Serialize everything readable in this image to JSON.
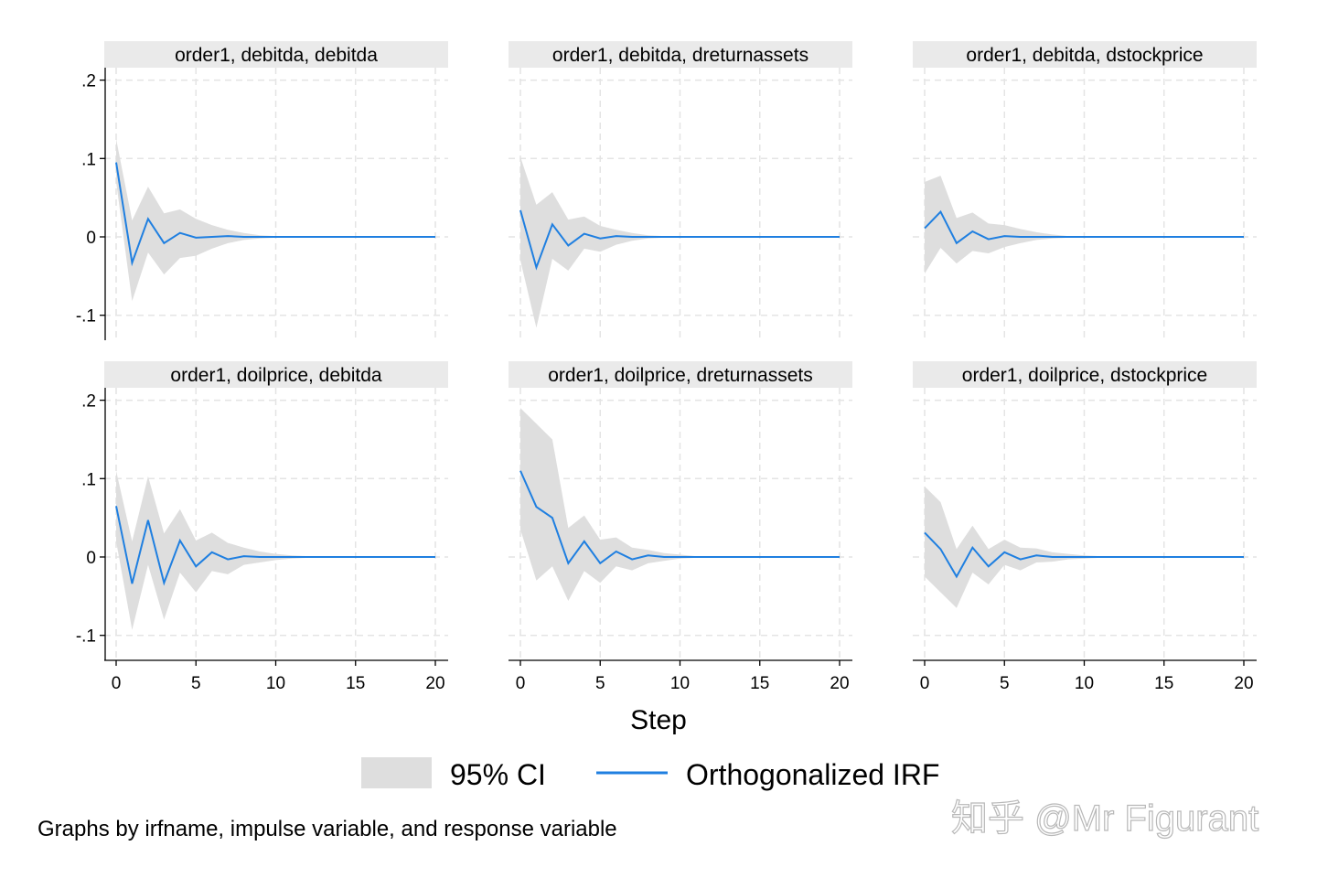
{
  "chart_data": [
    {
      "type": "area",
      "title": "order1, debitda, debitda",
      "show_yaxis": true,
      "x": [
        0,
        1,
        2,
        3,
        4,
        5,
        6,
        7,
        8,
        9,
        10,
        11,
        12,
        13,
        14,
        15,
        16,
        17,
        18,
        19,
        20
      ],
      "irf": [
        0.095,
        -0.033,
        0.023,
        -0.008,
        0.005,
        -0.001,
        0.0,
        0.001,
        0,
        0,
        0,
        0,
        0,
        0,
        0,
        0,
        0,
        0,
        0,
        0,
        0
      ],
      "upper": [
        0.125,
        0.021,
        0.064,
        0.03,
        0.035,
        0.023,
        0.015,
        0.009,
        0.005,
        0.002,
        0.001,
        0,
        0,
        0,
        0,
        0,
        0,
        0,
        0,
        0,
        0
      ],
      "lower": [
        0.07,
        -0.082,
        -0.02,
        -0.048,
        -0.027,
        -0.024,
        -0.015,
        -0.008,
        -0.004,
        -0.002,
        -0.001,
        0,
        0,
        0,
        0,
        0,
        0,
        0,
        0,
        0,
        0
      ]
    },
    {
      "type": "area",
      "title": "order1, debitda, dreturnassets",
      "show_yaxis": false,
      "x": [
        0,
        1,
        2,
        3,
        4,
        5,
        6,
        7,
        8,
        9,
        10,
        11,
        12,
        13,
        14,
        15,
        16,
        17,
        18,
        19,
        20
      ],
      "irf": [
        0.034,
        -0.039,
        0.016,
        -0.011,
        0.004,
        -0.002,
        0.001,
        0,
        0,
        0,
        0,
        0,
        0,
        0,
        0,
        0,
        0,
        0,
        0,
        0,
        0
      ],
      "upper": [
        0.102,
        0.041,
        0.057,
        0.022,
        0.026,
        0.014,
        0.009,
        0.005,
        0.002,
        0.001,
        0,
        0,
        0,
        0,
        0,
        0,
        0,
        0,
        0,
        0,
        0
      ],
      "lower": [
        -0.03,
        -0.116,
        -0.028,
        -0.043,
        -0.015,
        -0.019,
        -0.01,
        -0.005,
        -0.002,
        -0.001,
        0,
        0,
        0,
        0,
        0,
        0,
        0,
        0,
        0,
        0,
        0
      ]
    },
    {
      "type": "area",
      "title": "order1, debitda, dstockprice",
      "show_yaxis": false,
      "x": [
        0,
        1,
        2,
        3,
        4,
        5,
        6,
        7,
        8,
        9,
        10,
        11,
        12,
        13,
        14,
        15,
        16,
        17,
        18,
        19,
        20
      ],
      "irf": [
        0.011,
        0.032,
        -0.008,
        0.007,
        -0.003,
        0.001,
        0.0,
        0,
        0,
        0,
        0,
        0,
        0,
        0,
        0,
        0,
        0,
        0,
        0,
        0,
        0
      ],
      "upper": [
        0.07,
        0.078,
        0.024,
        0.031,
        0.017,
        0.015,
        0.01,
        0.006,
        0.003,
        0.001,
        0,
        0,
        0,
        0,
        0,
        0,
        0,
        0,
        0,
        0,
        0
      ],
      "lower": [
        -0.047,
        -0.014,
        -0.034,
        -0.018,
        -0.021,
        -0.013,
        -0.008,
        -0.004,
        -0.002,
        -0.001,
        0,
        0,
        0,
        0,
        0,
        0,
        0,
        0,
        0,
        0,
        0
      ]
    },
    {
      "type": "area",
      "title": "order1, doilprice, debitda",
      "show_yaxis": true,
      "x": [
        0,
        1,
        2,
        3,
        4,
        5,
        6,
        7,
        8,
        9,
        10,
        11,
        12,
        13,
        14,
        15,
        16,
        17,
        18,
        19,
        20
      ],
      "irf": [
        0.065,
        -0.034,
        0.047,
        -0.033,
        0.021,
        -0.012,
        0.006,
        -0.003,
        0.001,
        0,
        0,
        0,
        0,
        0,
        0,
        0,
        0,
        0,
        0,
        0,
        0
      ],
      "upper": [
        0.11,
        0.02,
        0.103,
        0.03,
        0.061,
        0.021,
        0.031,
        0.018,
        0.012,
        0.007,
        0.004,
        0.002,
        0.001,
        0,
        0,
        0,
        0,
        0,
        0,
        0,
        0
      ],
      "lower": [
        0.02,
        -0.093,
        -0.01,
        -0.08,
        -0.02,
        -0.045,
        -0.018,
        -0.022,
        -0.01,
        -0.007,
        -0.004,
        -0.002,
        -0.001,
        0,
        0,
        0,
        0,
        0,
        0,
        0,
        0
      ]
    },
    {
      "type": "area",
      "title": "order1, doilprice, dreturnassets",
      "show_yaxis": false,
      "x": [
        0,
        1,
        2,
        3,
        4,
        5,
        6,
        7,
        8,
        9,
        10,
        11,
        12,
        13,
        14,
        15,
        16,
        17,
        18,
        19,
        20
      ],
      "irf": [
        0.11,
        0.064,
        0.05,
        -0.008,
        0.02,
        -0.008,
        0.007,
        -0.003,
        0.002,
        0,
        0,
        0,
        0,
        0,
        0,
        0,
        0,
        0,
        0,
        0,
        0
      ],
      "upper": [
        0.19,
        0.17,
        0.15,
        0.037,
        0.053,
        0.022,
        0.025,
        0.012,
        0.009,
        0.005,
        0.003,
        0.001,
        0,
        0,
        0,
        0,
        0,
        0,
        0,
        0,
        0
      ],
      "lower": [
        0.035,
        -0.03,
        -0.012,
        -0.056,
        -0.018,
        -0.033,
        -0.012,
        -0.017,
        -0.008,
        -0.005,
        -0.002,
        -0.001,
        0,
        0,
        0,
        0,
        0,
        0,
        0,
        0,
        0
      ]
    },
    {
      "type": "area",
      "title": "order1, doilprice, dstockprice",
      "show_yaxis": false,
      "x": [
        0,
        1,
        2,
        3,
        4,
        5,
        6,
        7,
        8,
        9,
        10,
        11,
        12,
        13,
        14,
        15,
        16,
        17,
        18,
        19,
        20
      ],
      "irf": [
        0.031,
        0.01,
        -0.025,
        0.012,
        -0.012,
        0.006,
        -0.003,
        0.002,
        0,
        0,
        0,
        0,
        0,
        0,
        0,
        0,
        0,
        0,
        0,
        0,
        0
      ],
      "upper": [
        0.09,
        0.07,
        0.01,
        0.04,
        0.01,
        0.022,
        0.012,
        0.011,
        0.006,
        0.004,
        0.002,
        0.001,
        0,
        0,
        0,
        0,
        0,
        0,
        0,
        0,
        0
      ],
      "lower": [
        -0.025,
        -0.045,
        -0.065,
        -0.02,
        -0.035,
        -0.01,
        -0.017,
        -0.007,
        -0.006,
        -0.003,
        -0.002,
        -0.001,
        0,
        0,
        0,
        0,
        0,
        0,
        0,
        0,
        0
      ]
    }
  ],
  "axes": {
    "xlabel": "Step",
    "xlim": [
      0,
      20
    ],
    "ylim": [
      -0.13,
      0.215
    ],
    "xticks": [
      {
        "v": 0,
        "label": "0"
      },
      {
        "v": 5,
        "label": "5"
      },
      {
        "v": 10,
        "label": "10"
      },
      {
        "v": 15,
        "label": "15"
      },
      {
        "v": 20,
        "label": "20"
      }
    ],
    "yticks": [
      {
        "v": 0.2,
        "label": ".2"
      },
      {
        "v": 0.1,
        "label": ".1"
      },
      {
        "v": 0,
        "label": "0"
      },
      {
        "v": -0.1,
        "label": "-.1"
      }
    ],
    "grid": true
  },
  "legend": {
    "position": "bottom",
    "ci_label": "95% CI",
    "irf_label": "Orthogonalized IRF"
  },
  "note": "Graphs by irfname, impulse variable, and response variable",
  "watermark": "知乎 @Mr Figurant",
  "colors": {
    "ci": "#dedede",
    "irf": "#1f7fe0",
    "header": "#eaeaea"
  }
}
